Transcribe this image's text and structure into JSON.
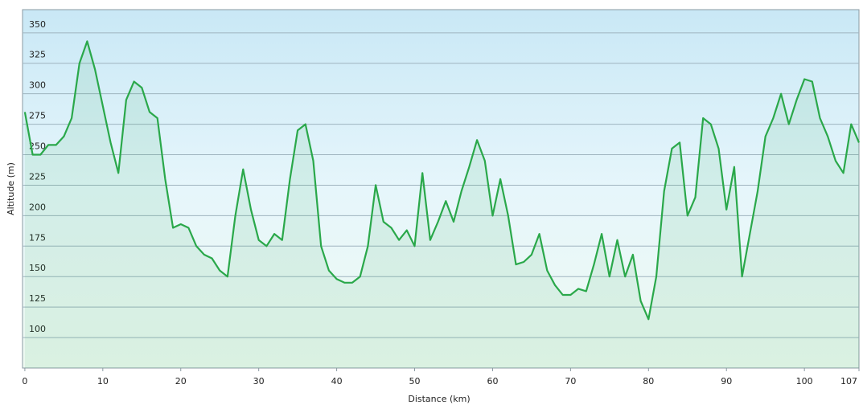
{
  "chart_data": {
    "type": "line",
    "x_label": "Distance  (km)",
    "y_label": "Altitude (m)",
    "x": [
      0,
      1,
      2,
      3,
      4,
      5,
      6,
      7,
      8,
      9,
      10,
      11,
      12,
      13,
      14,
      15,
      16,
      17,
      18,
      19,
      20,
      21,
      22,
      23,
      24,
      25,
      26,
      27,
      28,
      29,
      30,
      31,
      32,
      33,
      34,
      35,
      36,
      37,
      38,
      39,
      40,
      41,
      42,
      43,
      44,
      45,
      46,
      47,
      48,
      49,
      50,
      51,
      52,
      53,
      54,
      55,
      56,
      57,
      58,
      59,
      60,
      61,
      62,
      63,
      64,
      65,
      66,
      67,
      68,
      69,
      70,
      71,
      72,
      73,
      74,
      75,
      76,
      77,
      78,
      79,
      80,
      81,
      82,
      83,
      84,
      85,
      86,
      87,
      88,
      89,
      90,
      91,
      92,
      93,
      94,
      95,
      96,
      97,
      98,
      99,
      100,
      101,
      102,
      103,
      104,
      105,
      106,
      107
    ],
    "series": [
      {
        "name": "Altitude",
        "color": "#2aa84a",
        "values": [
          285,
          250,
          250,
          258,
          258,
          265,
          280,
          325,
          343,
          320,
          290,
          260,
          235,
          295,
          310,
          305,
          285,
          280,
          230,
          190,
          193,
          190,
          175,
          168,
          165,
          155,
          150,
          200,
          238,
          205,
          180,
          175,
          185,
          180,
          230,
          270,
          275,
          245,
          175,
          155,
          148,
          145,
          145,
          150,
          175,
          225,
          195,
          190,
          180,
          188,
          175,
          235,
          180,
          195,
          212,
          195,
          220,
          240,
          262,
          245,
          200,
          230,
          200,
          160,
          162,
          168,
          185,
          155,
          143,
          135,
          135,
          140,
          138,
          160,
          185,
          150,
          180,
          150,
          168,
          130,
          115,
          150,
          220,
          255,
          260,
          200,
          215,
          280,
          275,
          255,
          205,
          240,
          150,
          185,
          220,
          265,
          280,
          300,
          275,
          295,
          312,
          310,
          280,
          265,
          245,
          235,
          275,
          260
        ]
      }
    ],
    "xlim": [
      -0.3,
      107
    ],
    "xticks": [
      0,
      10,
      20,
      30,
      40,
      50,
      60,
      70,
      80,
      90,
      100,
      107
    ],
    "ylim": [
      75,
      369
    ],
    "yticks": [
      100,
      125,
      150,
      175,
      200,
      225,
      250,
      275,
      300,
      325,
      350
    ],
    "grid": true
  }
}
